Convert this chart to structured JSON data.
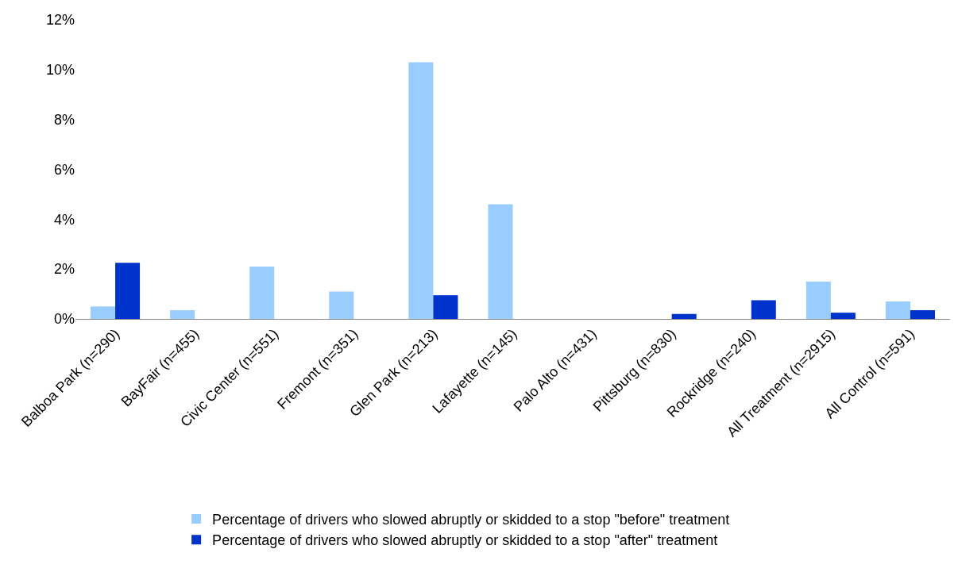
{
  "chart_data": {
    "type": "bar",
    "categories": [
      "Balboa Park (n=290)",
      "BayFair (n=455)",
      "Civic Center (n=551)",
      "Fremont (n=351)",
      "Glen Park (n=213)",
      "Lafayette (n=145)",
      "Palo Alto (n=431)",
      "Pittsburg (n=830)",
      "Rockridge (n=240)",
      "All Treatment (n=2915)",
      "All Control (n=591)"
    ],
    "series": [
      {
        "name": "Percentage of drivers who slowed abruptly or skidded to a stop \"before\" treatment",
        "color": "#99ccff",
        "values": [
          0.5,
          0.35,
          2.1,
          1.1,
          10.3,
          4.6,
          0,
          0,
          0,
          1.5,
          0.7
        ]
      },
      {
        "name": "Percentage of drivers who slowed abruptly or skidded to a stop \"after\" treatment",
        "color": "#0033cc",
        "values": [
          2.25,
          0,
          0,
          0,
          0.95,
          0,
          0,
          0.2,
          0.75,
          0.25,
          0.35
        ]
      }
    ],
    "ylim": [
      0,
      12
    ],
    "yticks": [
      {
        "value": 0,
        "label": "0%"
      },
      {
        "value": 2,
        "label": "2%"
      },
      {
        "value": 4,
        "label": "4%"
      },
      {
        "value": 6,
        "label": "6%"
      },
      {
        "value": 8,
        "label": "8%"
      },
      {
        "value": 10,
        "label": "10%"
      },
      {
        "value": 12,
        "label": "12%"
      }
    ],
    "grid": false,
    "legend": "bottom"
  }
}
